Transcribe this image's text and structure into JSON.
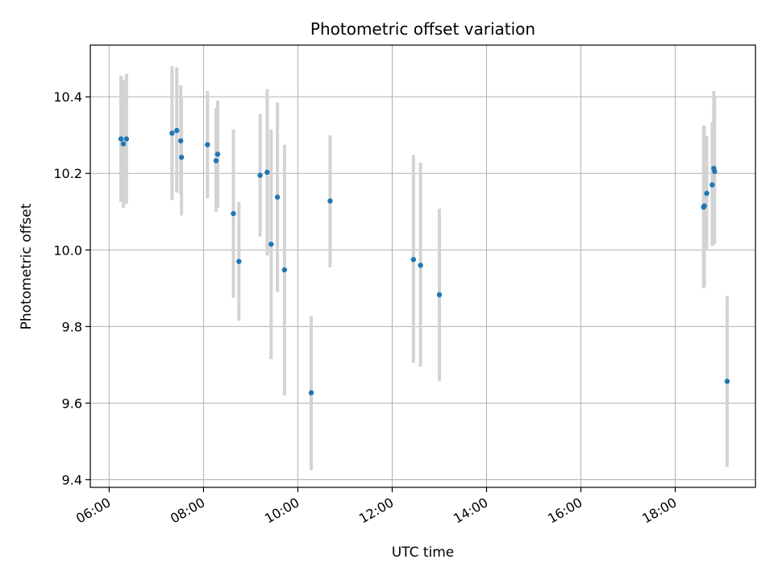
{
  "chart_data": {
    "type": "scatter",
    "title": "Photometric offset variation",
    "xlabel": "UTC time",
    "ylabel": "Photometric offset",
    "x_unit": "hours UTC",
    "xlim": [
      "05:36",
      "19:42"
    ],
    "ylim": [
      9.38,
      10.535
    ],
    "x_ticks": [
      "06:00",
      "08:00",
      "10:00",
      "12:00",
      "14:00",
      "16:00",
      "18:00"
    ],
    "y_ticks": [
      "9.4",
      "9.6",
      "9.8",
      "10.0",
      "10.2",
      "10.4"
    ],
    "grid": true,
    "series": [
      {
        "marker_color": "#1f77b4",
        "errorbar_color": "#d3d3d3",
        "points": [
          {
            "x": "06:15",
            "y": 10.29,
            "ylow": 10.125,
            "yhigh": 10.455
          },
          {
            "x": "06:18",
            "y": 10.277,
            "ylow": 10.11,
            "yhigh": 10.445
          },
          {
            "x": "06:22",
            "y": 10.29,
            "ylow": 10.12,
            "yhigh": 10.46
          },
          {
            "x": "07:20",
            "y": 10.305,
            "ylow": 10.13,
            "yhigh": 10.48
          },
          {
            "x": "07:26",
            "y": 10.312,
            "ylow": 10.15,
            "yhigh": 10.477
          },
          {
            "x": "07:31",
            "y": 10.285,
            "ylow": 10.145,
            "yhigh": 10.43
          },
          {
            "x": "07:32",
            "y": 10.242,
            "ylow": 10.09,
            "yhigh": 10.395
          },
          {
            "x": "08:05",
            "y": 10.275,
            "ylow": 10.135,
            "yhigh": 10.415
          },
          {
            "x": "08:16",
            "y": 10.233,
            "ylow": 10.1,
            "yhigh": 10.37
          },
          {
            "x": "08:18",
            "y": 10.25,
            "ylow": 10.11,
            "yhigh": 10.39
          },
          {
            "x": "08:38",
            "y": 10.095,
            "ylow": 9.875,
            "yhigh": 10.315
          },
          {
            "x": "08:45",
            "y": 9.97,
            "ylow": 9.815,
            "yhigh": 10.125
          },
          {
            "x": "09:12",
            "y": 10.195,
            "ylow": 10.035,
            "yhigh": 10.355
          },
          {
            "x": "09:21",
            "y": 10.203,
            "ylow": 9.985,
            "yhigh": 10.42
          },
          {
            "x": "09:26",
            "y": 10.015,
            "ylow": 9.715,
            "yhigh": 10.315
          },
          {
            "x": "09:34",
            "y": 10.138,
            "ylow": 9.89,
            "yhigh": 10.385
          },
          {
            "x": "09:43",
            "y": 9.948,
            "ylow": 9.62,
            "yhigh": 10.275
          },
          {
            "x": "10:17",
            "y": 9.627,
            "ylow": 9.425,
            "yhigh": 9.828
          },
          {
            "x": "10:41",
            "y": 10.128,
            "ylow": 9.955,
            "yhigh": 10.3
          },
          {
            "x": "12:27",
            "y": 9.975,
            "ylow": 9.705,
            "yhigh": 10.248
          },
          {
            "x": "12:36",
            "y": 9.96,
            "ylow": 9.695,
            "yhigh": 10.228
          },
          {
            "x": "13:00",
            "y": 9.883,
            "ylow": 9.658,
            "yhigh": 10.108
          },
          {
            "x": "18:36",
            "y": 10.112,
            "ylow": 9.9,
            "yhigh": 10.325
          },
          {
            "x": "18:37",
            "y": 10.115,
            "ylow": 9.905,
            "yhigh": 10.325
          },
          {
            "x": "18:40",
            "y": 10.148,
            "ylow": 9.998,
            "yhigh": 10.298
          },
          {
            "x": "18:47",
            "y": 10.17,
            "ylow": 10.01,
            "yhigh": 10.335
          },
          {
            "x": "18:49",
            "y": 10.213,
            "ylow": 10.015,
            "yhigh": 10.415
          },
          {
            "x": "18:50",
            "y": 10.205,
            "ylow": 10.015,
            "yhigh": 10.398
          },
          {
            "x": "19:06",
            "y": 9.657,
            "ylow": 9.433,
            "yhigh": 9.88
          }
        ]
      }
    ]
  }
}
